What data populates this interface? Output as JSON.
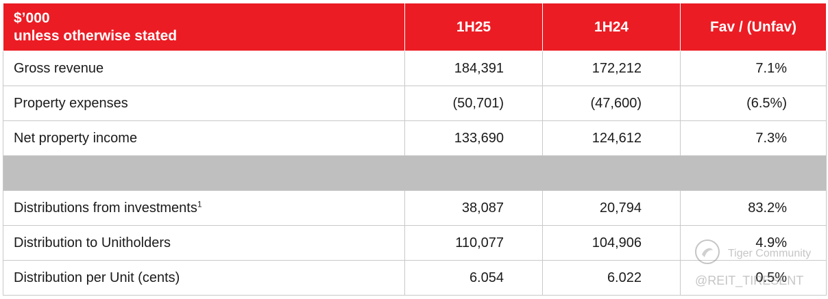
{
  "table": {
    "header": {
      "label_line1": "$’000",
      "label_line2": "unless otherwise stated",
      "col1": "1H25",
      "col2": "1H24",
      "col3": "Fav / (Unfav)"
    },
    "rows": [
      {
        "label": "Gross revenue",
        "sup": "",
        "c1": "184,391",
        "c2": "172,212",
        "c3": "7.1%"
      },
      {
        "label": "Property expenses",
        "sup": "",
        "c1": "(50,701)",
        "c2": "(47,600)",
        "c3": "(6.5%)"
      },
      {
        "label": "Net property income",
        "sup": "",
        "c1": "133,690",
        "c2": "124,612",
        "c3": "7.3%"
      },
      {
        "label": "Distributions from investments",
        "sup": "1",
        "c1": "38,087",
        "c2": "20,794",
        "c3": "83.2%"
      },
      {
        "label": "Distribution to Unitholders",
        "sup": "",
        "c1": "110,077",
        "c2": "104,906",
        "c3": "4.9%"
      },
      {
        "label": "Distribution per Unit (cents)",
        "sup": "",
        "c1": "6.054",
        "c2": "6.022",
        "c3": "0.5%"
      }
    ]
  },
  "watermark": {
    "line1": "Tiger Community",
    "line2": "@REIT_TIRESENT"
  },
  "colors": {
    "header_bg": "#ec1c24",
    "spacer_bg": "#bfbfbf",
    "border": "#c8c8c8"
  }
}
